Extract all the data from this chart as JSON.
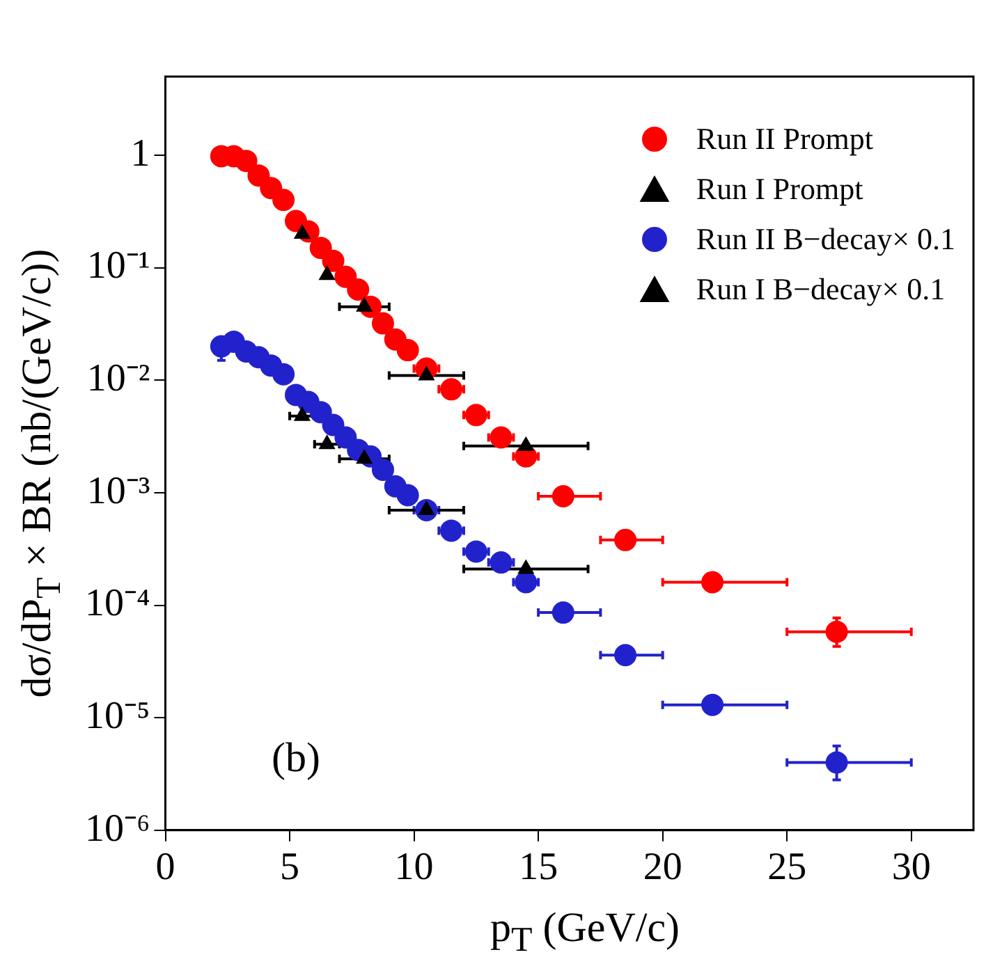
{
  "chart_data": {
    "type": "scatter",
    "xlabel": "p$_{T}$ (GeV/c)",
    "ylabel": "dσ/dP$_{T}$ × BR (nb/(GeV/c))",
    "log": "y",
    "xlim": [
      0,
      32.5
    ],
    "xticks": [
      0,
      5,
      10,
      15,
      20,
      25,
      30
    ],
    "ylim": [
      1e-06,
      5
    ],
    "yticks": [
      {
        "value": 1e-06,
        "label": "10⁻⁶"
      },
      {
        "value": 1e-05,
        "label": "10⁻⁵"
      },
      {
        "value": 0.0001,
        "label": "10⁻⁴"
      },
      {
        "value": 0.001,
        "label": "10⁻³"
      },
      {
        "value": 0.01,
        "label": "10⁻²"
      },
      {
        "value": 0.1,
        "label": "10⁻¹"
      },
      1
    ],
    "grid": false,
    "legend": "top right",
    "annotations": [
      "(b)"
    ],
    "series": [
      {
        "name": "Run II Prompt",
        "color": "#ff0000",
        "marker": "circle",
        "x": [
          2.25,
          2.75,
          3.25,
          3.75,
          4.25,
          4.75,
          5.25,
          5.75,
          6.25,
          6.75,
          7.25,
          7.75,
          8.25,
          8.75,
          9.25,
          9.75,
          10.5,
          11.5,
          12.5,
          13.5,
          14.5,
          16,
          18.5,
          22,
          27
        ],
        "values": [
          0.98,
          0.98,
          0.89,
          0.66,
          0.51,
          0.4,
          0.26,
          0.21,
          0.15,
          0.115,
          0.083,
          0.064,
          0.045,
          0.032,
          0.023,
          0.0185,
          0.0127,
          0.0083,
          0.0049,
          0.0031,
          0.0021,
          0.00093,
          0.00038,
          0.00016,
          5.8e-05
        ],
        "xerrors": [
          null,
          null,
          null,
          null,
          null,
          null,
          null,
          null,
          null,
          null,
          null,
          null,
          null,
          null,
          null,
          null,
          [
            10,
            11
          ],
          [
            11,
            12
          ],
          [
            12,
            13
          ],
          [
            13,
            14
          ],
          [
            14,
            15
          ],
          [
            15,
            17.5
          ],
          [
            17.5,
            20
          ],
          [
            20,
            25
          ],
          [
            25,
            30
          ]
        ],
        "errors": [
          null,
          null,
          null,
          null,
          null,
          null,
          null,
          null,
          null,
          null,
          null,
          null,
          null,
          null,
          null,
          null,
          null,
          null,
          null,
          null,
          null,
          null,
          null,
          null,
          [
            4.3e-05,
            7.7e-05
          ]
        ]
      },
      {
        "name": "Run I  Prompt",
        "color": "#000000",
        "marker": "triangle",
        "x": [
          5.5,
          6.5,
          8,
          10.5,
          14.5
        ],
        "values": [
          0.2,
          0.086,
          0.045,
          0.011,
          0.0026
        ],
        "xerrors": [
          null,
          null,
          [
            7,
            9
          ],
          [
            9,
            12
          ],
          [
            12,
            17
          ]
        ]
      },
      {
        "name": "Run II B−decay× 0.1",
        "color": "#2222cc",
        "marker": "circle",
        "x": [
          2.25,
          2.75,
          3.25,
          3.75,
          4.25,
          4.75,
          5.25,
          5.75,
          6.25,
          6.75,
          7.25,
          7.75,
          8.25,
          8.75,
          9.25,
          9.75,
          10.5,
          11.5,
          12.5,
          13.5,
          14.5,
          16,
          18.5,
          22,
          27
        ],
        "values": [
          0.02,
          0.022,
          0.018,
          0.016,
          0.0135,
          0.0113,
          0.0074,
          0.0064,
          0.0052,
          0.004,
          0.0031,
          0.0024,
          0.0021,
          0.0016,
          0.00114,
          0.00095,
          0.0007,
          0.00046,
          0.0003,
          0.00024,
          0.00016,
          8.6e-05,
          3.6e-05,
          1.3e-05,
          4e-06
        ],
        "xerrors": [
          null,
          null,
          null,
          null,
          null,
          null,
          null,
          null,
          null,
          null,
          null,
          null,
          null,
          null,
          null,
          null,
          [
            10,
            11
          ],
          [
            11,
            12
          ],
          [
            12,
            13
          ],
          [
            13,
            14
          ],
          [
            14,
            15
          ],
          [
            15,
            17.5
          ],
          [
            17.5,
            20
          ],
          [
            20,
            25
          ],
          [
            25,
            30
          ]
        ],
        "errors": [
          [
            0.015,
            0.0235
          ],
          null,
          null,
          null,
          null,
          null,
          null,
          null,
          null,
          null,
          null,
          null,
          null,
          null,
          null,
          null,
          null,
          null,
          null,
          null,
          null,
          null,
          null,
          null,
          [
            2.8e-06,
            5.6e-06
          ]
        ]
      },
      {
        "name": "Run I  B−decay× 0.1",
        "color": "#000000",
        "marker": "triangle",
        "x": [
          5.5,
          6.5,
          8,
          10.5,
          14.5
        ],
        "values": [
          0.0048,
          0.0027,
          0.002,
          0.0007,
          0.00021
        ],
        "xerrors": [
          [
            5,
            6
          ],
          [
            6,
            7
          ],
          [
            7,
            9
          ],
          [
            9,
            12
          ],
          [
            12,
            17
          ]
        ]
      }
    ]
  }
}
